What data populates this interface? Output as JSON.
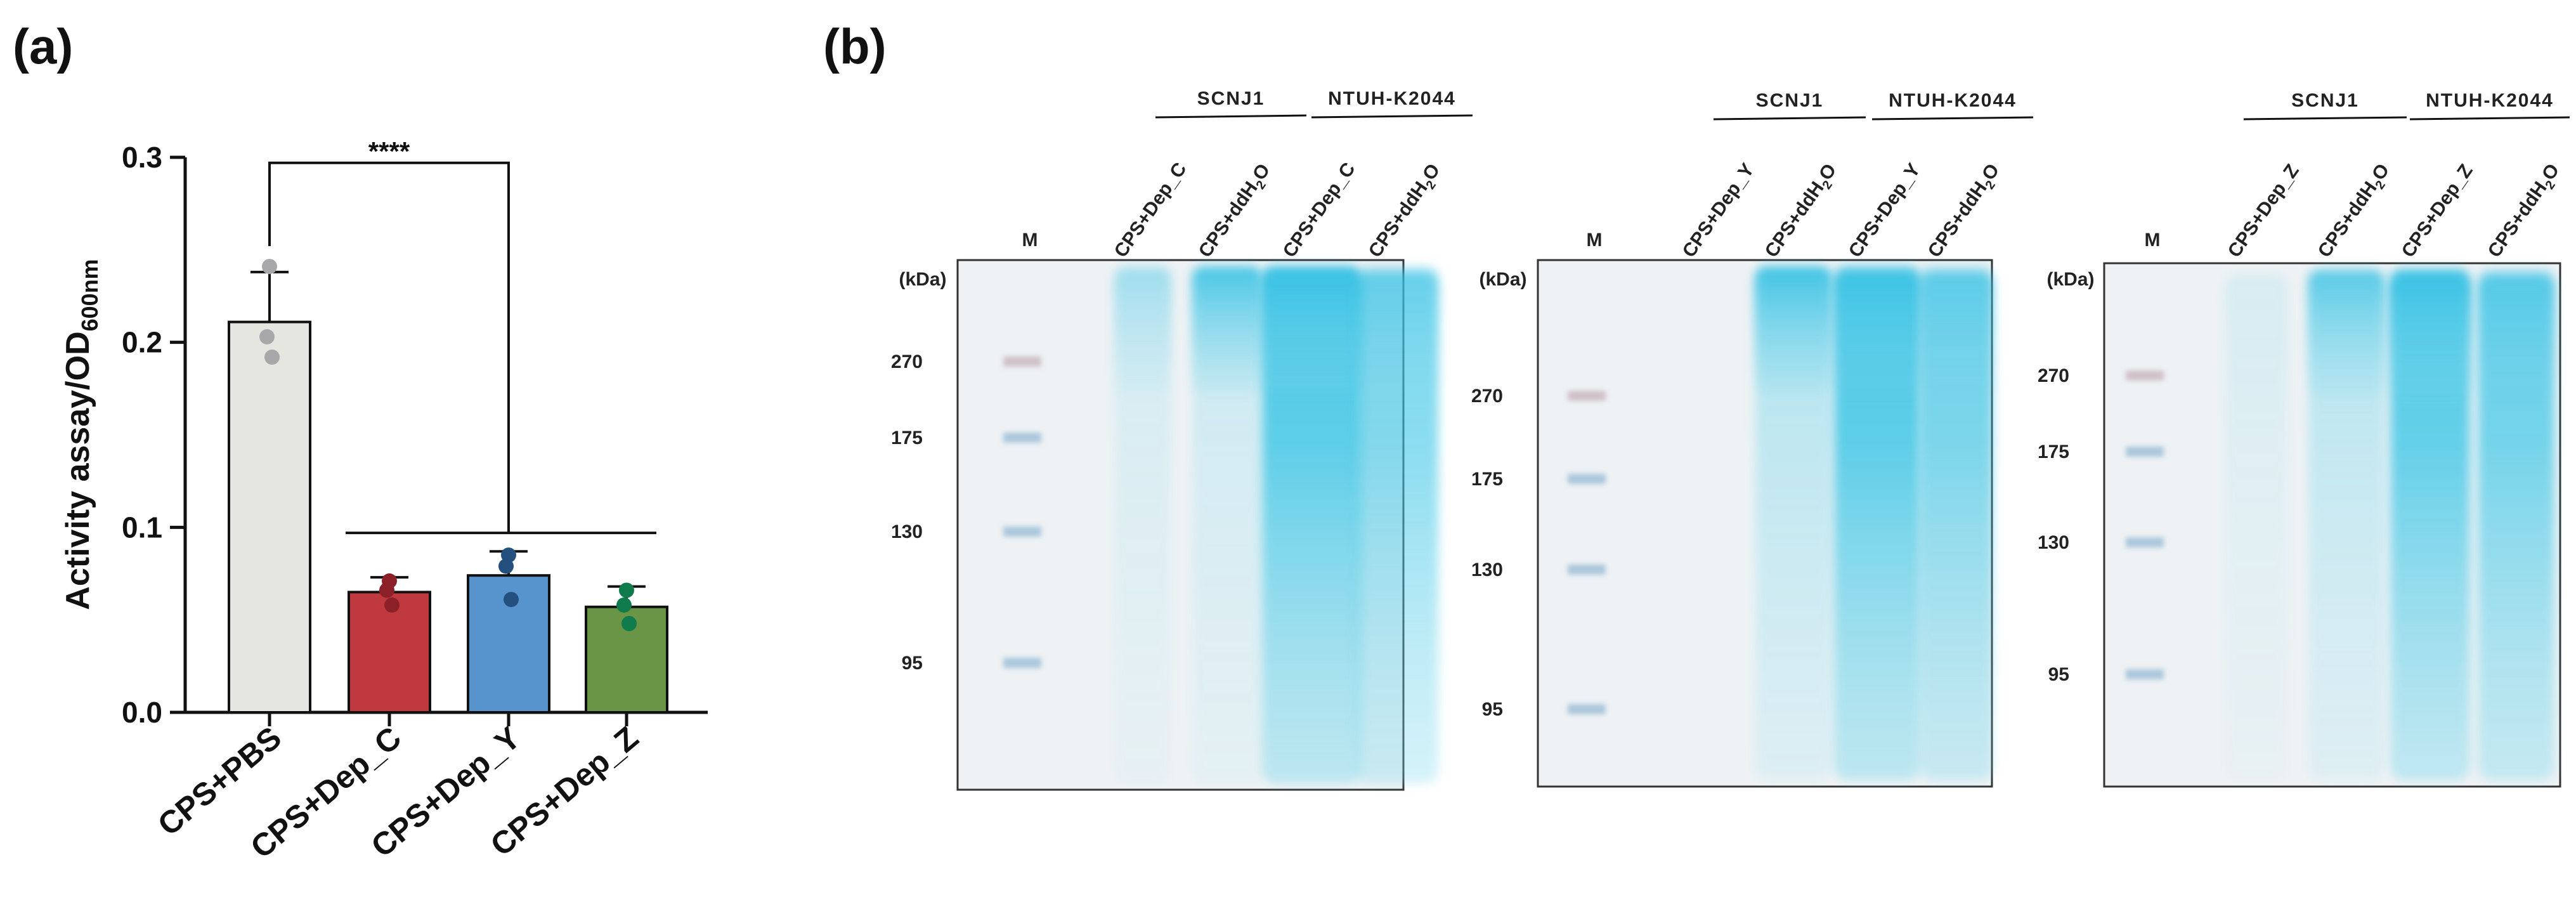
{
  "panels": {
    "a_label": "(a)",
    "b_label": "(b)"
  },
  "chart_data": {
    "type": "bar",
    "categories": [
      "CPS+PBS",
      "CPS+Dep_C",
      "CPS+Dep_Y",
      "CPS+Dep_Z"
    ],
    "values": [
      0.211,
      0.065,
      0.074,
      0.057
    ],
    "errors": [
      0.027,
      0.008,
      0.013,
      0.011
    ],
    "points": [
      [
        0.241,
        0.203,
        0.192
      ],
      [
        0.071,
        0.066,
        0.058
      ],
      [
        0.085,
        0.079,
        0.061
      ],
      [
        0.066,
        0.058,
        0.048
      ]
    ],
    "bar_colors": [
      "#e6e6e1",
      "#c0393f",
      "#5793cd",
      "#6a9446"
    ],
    "point_colors": [
      "#a8a8ab",
      "#8b2029",
      "#23507e",
      "#0f7a4b"
    ],
    "ylabel_main": "Activity assay/OD",
    "ylabel_sub": "600nm",
    "xlabel": "",
    "ylim": [
      0,
      0.3
    ],
    "yticks": [
      "0.0",
      "0.1",
      "0.2",
      "0.3"
    ],
    "significance": "****",
    "grid": false
  },
  "gels": [
    {
      "group_labels": [
        "SCNJ1",
        "NTUH-K2044"
      ],
      "marker_label": "M",
      "lane_labels": [
        "CPS+Dep_C",
        "CPS+ddH2O",
        "CPS+Dep_C",
        "CPS+ddH2O"
      ],
      "unit_label": "(kDa)",
      "markers": [
        "270",
        "175",
        "130",
        "95"
      ]
    },
    {
      "group_labels": [
        "SCNJ1",
        "NTUH-K2044"
      ],
      "marker_label": "M",
      "lane_labels": [
        "CPS+Dep_Y",
        "CPS+ddH2O",
        "CPS+Dep_Y",
        "CPS+ddH2O"
      ],
      "unit_label": "(kDa)",
      "markers": [
        "270",
        "175",
        "130",
        "95"
      ]
    },
    {
      "group_labels": [
        "SCNJ1",
        "NTUH-K2044"
      ],
      "marker_label": "M",
      "lane_labels": [
        "CPS+Dep_Z",
        "CPS+ddH2O",
        "CPS+Dep_Z",
        "CPS+ddH2O"
      ],
      "unit_label": "(kDa)",
      "markers": [
        "270",
        "175",
        "130",
        "95"
      ]
    }
  ],
  "colors": {
    "stain": "#3ec6e6",
    "gel_bg": "#eef2f4",
    "marker_band": "#9fbfd8",
    "marker_270": "#c9b9bf"
  }
}
